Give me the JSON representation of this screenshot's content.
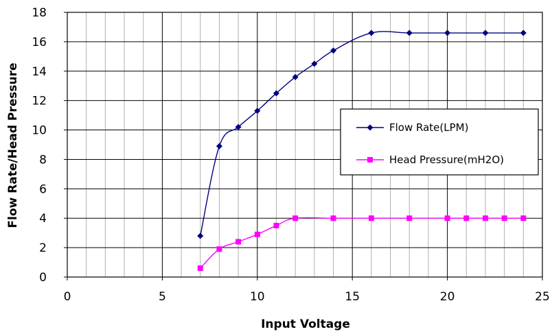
{
  "chart_data": {
    "type": "line",
    "xlabel": "Input Voltage",
    "ylabel": "Flow Rate/Head Pressure",
    "xlim": [
      0,
      25
    ],
    "ylim": [
      0,
      18
    ],
    "x_ticks": [
      0,
      5,
      10,
      15,
      20,
      25
    ],
    "y_ticks": [
      0,
      2,
      4,
      6,
      8,
      10,
      12,
      14,
      16,
      18
    ],
    "x_minor_step": 1,
    "x_major_grid_step": 5,
    "y_major_step": 2,
    "grid": true,
    "legend_placement": "right",
    "series": [
      {
        "name": "Flow Rate(LPM)",
        "color": "#000080",
        "marker": "diamond",
        "smooth": true,
        "x": [
          7,
          8,
          9,
          10,
          11,
          12,
          13,
          14,
          16,
          18,
          20,
          22,
          24
        ],
        "y": [
          2.8,
          8.9,
          10.2,
          11.3,
          12.5,
          13.6,
          14.5,
          15.4,
          16.6,
          16.6,
          16.6,
          16.6,
          16.6
        ]
      },
      {
        "name": "Head Pressure(mH2O)",
        "color": "#ff00ff",
        "marker": "square",
        "smooth": true,
        "x": [
          7,
          8,
          9,
          10,
          11,
          12,
          14,
          16,
          18,
          20,
          21,
          22,
          23,
          24
        ],
        "y": [
          0.6,
          1.9,
          2.4,
          2.9,
          3.5,
          4.0,
          4.0,
          4.0,
          4.0,
          4.0,
          4.0,
          4.0,
          4.0,
          4.0
        ]
      }
    ]
  }
}
